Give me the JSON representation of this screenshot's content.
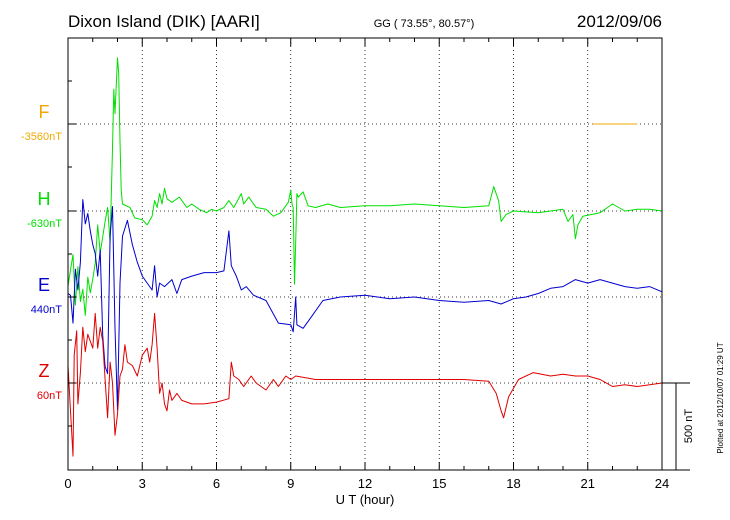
{
  "header": {
    "station": "Dixon Island (DIK)  [AARI]",
    "coords": "GG ( 73.55°,  80.57°)",
    "date": "2012/09/06"
  },
  "plotted_note": "Plotted at 2012/10/07 01:29 UT",
  "scale_label": "500 nT",
  "colors": {
    "F": "#f0a800",
    "H": "#00e000",
    "E": "#0000d0",
    "Z": "#e00000",
    "frame": "#000000",
    "grid": "#000000"
  },
  "chart_data": {
    "type": "line",
    "title": "Dixon Island (DIK)  [AARI]",
    "xlabel": "U T (hour)",
    "xlim": [
      0,
      24
    ],
    "xticks": [
      0,
      3,
      6,
      9,
      12,
      15,
      18,
      21,
      24
    ],
    "grid": true,
    "scale_bar_nT": 500,
    "series": [
      {
        "name": "F",
        "baseline_label": "-3560nT",
        "points": [
          [
            21.2,
            0
          ],
          [
            23.0,
            0
          ]
        ]
      },
      {
        "name": "H",
        "baseline_label": "-630nT",
        "points": [
          [
            0,
            -430
          ],
          [
            0.2,
            -250
          ],
          [
            0.3,
            -540
          ],
          [
            0.4,
            -320
          ],
          [
            0.5,
            -520
          ],
          [
            0.6,
            -450
          ],
          [
            0.7,
            -600
          ],
          [
            0.8,
            -380
          ],
          [
            0.9,
            -470
          ],
          [
            1.0,
            -390
          ],
          [
            1.1,
            -300
          ],
          [
            1.2,
            -80
          ],
          [
            1.3,
            -240
          ],
          [
            1.4,
            -150
          ],
          [
            1.5,
            -60
          ],
          [
            1.6,
            20
          ],
          [
            1.7,
            -180
          ],
          [
            1.8,
            360
          ],
          [
            1.85,
            700
          ],
          [
            1.9,
            560
          ],
          [
            2.0,
            880
          ],
          [
            2.05,
            790
          ],
          [
            2.1,
            400
          ],
          [
            2.15,
            120
          ],
          [
            2.2,
            40
          ],
          [
            2.5,
            20
          ],
          [
            2.7,
            -40
          ],
          [
            3.0,
            -50
          ],
          [
            3.2,
            -80
          ],
          [
            3.4,
            -30
          ],
          [
            3.5,
            60
          ],
          [
            3.6,
            20
          ],
          [
            3.7,
            100
          ],
          [
            3.8,
            40
          ],
          [
            3.9,
            130
          ],
          [
            4.0,
            70
          ],
          [
            4.2,
            50
          ],
          [
            4.5,
            80
          ],
          [
            4.8,
            20
          ],
          [
            5.0,
            40
          ],
          [
            5.3,
            10
          ],
          [
            5.6,
            -10
          ],
          [
            5.8,
            10
          ],
          [
            6.0,
            0
          ],
          [
            6.3,
            20
          ],
          [
            6.5,
            60
          ],
          [
            6.7,
            20
          ],
          [
            7.0,
            100
          ],
          [
            7.1,
            40
          ],
          [
            7.3,
            80
          ],
          [
            7.6,
            20
          ],
          [
            8.0,
            10
          ],
          [
            8.3,
            -30
          ],
          [
            8.6,
            -10
          ],
          [
            8.9,
            50
          ],
          [
            9.0,
            120
          ],
          [
            9.05,
            40
          ],
          [
            9.1,
            20
          ],
          [
            9.15,
            -420
          ],
          [
            9.2,
            -180
          ],
          [
            9.25,
            100
          ],
          [
            9.3,
            80
          ],
          [
            9.5,
            110
          ],
          [
            9.7,
            30
          ],
          [
            10.0,
            20
          ],
          [
            10.5,
            40
          ],
          [
            11.0,
            20
          ],
          [
            12.0,
            30
          ],
          [
            13.0,
            30
          ],
          [
            14.0,
            40
          ],
          [
            15.0,
            30
          ],
          [
            16.0,
            20
          ],
          [
            17.0,
            30
          ],
          [
            17.2,
            140
          ],
          [
            17.4,
            60
          ],
          [
            17.5,
            -60
          ],
          [
            17.7,
            -20
          ],
          [
            18.0,
            0
          ],
          [
            19.0,
            -10
          ],
          [
            20.0,
            10
          ],
          [
            20.2,
            -60
          ],
          [
            20.4,
            -20
          ],
          [
            20.5,
            -160
          ],
          [
            20.6,
            -80
          ],
          [
            20.8,
            -30
          ],
          [
            21.5,
            -10
          ],
          [
            22.0,
            40
          ],
          [
            22.5,
            0
          ],
          [
            23.0,
            10
          ],
          [
            23.5,
            10
          ],
          [
            24.0,
            0
          ]
        ]
      },
      {
        "name": "E",
        "baseline_label": "440nT",
        "points": [
          [
            0,
            20
          ],
          [
            0.1,
            10
          ],
          [
            0.2,
            -150
          ],
          [
            0.3,
            160
          ],
          [
            0.4,
            40
          ],
          [
            0.5,
            200
          ],
          [
            0.6,
            560
          ],
          [
            0.7,
            420
          ],
          [
            0.8,
            480
          ],
          [
            0.9,
            380
          ],
          [
            1.0,
            300
          ],
          [
            1.1,
            250
          ],
          [
            1.2,
            120
          ],
          [
            1.3,
            270
          ],
          [
            1.4,
            -220
          ],
          [
            1.5,
            -400
          ],
          [
            1.6,
            -440
          ],
          [
            1.7,
            350
          ],
          [
            1.8,
            520
          ],
          [
            1.9,
            -180
          ],
          [
            2.0,
            -650
          ],
          [
            2.1,
            80
          ],
          [
            2.2,
            350
          ],
          [
            2.4,
            440
          ],
          [
            2.6,
            300
          ],
          [
            2.8,
            200
          ],
          [
            3.0,
            120
          ],
          [
            3.2,
            80
          ],
          [
            3.4,
            40
          ],
          [
            3.5,
            180
          ],
          [
            3.6,
            0
          ],
          [
            3.7,
            80
          ],
          [
            3.9,
            60
          ],
          [
            4.2,
            100
          ],
          [
            4.4,
            20
          ],
          [
            4.6,
            100
          ],
          [
            5.0,
            120
          ],
          [
            5.5,
            140
          ],
          [
            6.0,
            140
          ],
          [
            6.3,
            150
          ],
          [
            6.5,
            380
          ],
          [
            6.6,
            180
          ],
          [
            6.8,
            120
          ],
          [
            7.0,
            40
          ],
          [
            7.2,
            60
          ],
          [
            7.5,
            10
          ],
          [
            8.0,
            -20
          ],
          [
            8.5,
            -150
          ],
          [
            9.0,
            -160
          ],
          [
            9.1,
            -200
          ],
          [
            9.2,
            0
          ],
          [
            9.25,
            -160
          ],
          [
            9.5,
            -180
          ],
          [
            9.8,
            -120
          ],
          [
            10.3,
            -20
          ],
          [
            11.0,
            0
          ],
          [
            12.0,
            10
          ],
          [
            13.0,
            -10
          ],
          [
            14.0,
            0
          ],
          [
            15.0,
            -20
          ],
          [
            16.0,
            -30
          ],
          [
            17.0,
            -20
          ],
          [
            17.5,
            -40
          ],
          [
            18.0,
            -10
          ],
          [
            18.5,
            0
          ],
          [
            19.0,
            20
          ],
          [
            19.5,
            50
          ],
          [
            20.0,
            60
          ],
          [
            20.5,
            100
          ],
          [
            21.0,
            80
          ],
          [
            21.5,
            100
          ],
          [
            22.0,
            80
          ],
          [
            22.5,
            60
          ],
          [
            23.0,
            50
          ],
          [
            23.5,
            60
          ],
          [
            24.0,
            30
          ]
        ]
      },
      {
        "name": "Z",
        "baseline_label": "60nT",
        "points": [
          [
            0,
            100
          ],
          [
            0.2,
            -420
          ],
          [
            0.25,
            160
          ],
          [
            0.35,
            300
          ],
          [
            0.4,
            -120
          ],
          [
            0.5,
            60
          ],
          [
            0.6,
            320
          ],
          [
            0.7,
            180
          ],
          [
            0.8,
            280
          ],
          [
            1.0,
            200
          ],
          [
            1.1,
            400
          ],
          [
            1.2,
            200
          ],
          [
            1.3,
            320
          ],
          [
            1.4,
            240
          ],
          [
            1.5,
            20
          ],
          [
            1.6,
            -200
          ],
          [
            1.7,
            120
          ],
          [
            1.8,
            0
          ],
          [
            1.9,
            -300
          ],
          [
            2.0,
            -180
          ],
          [
            2.1,
            40
          ],
          [
            2.2,
            80
          ],
          [
            2.3,
            220
          ],
          [
            2.4,
            120
          ],
          [
            2.6,
            100
          ],
          [
            2.8,
            40
          ],
          [
            3.0,
            160
          ],
          [
            3.2,
            200
          ],
          [
            3.3,
            120
          ],
          [
            3.4,
            220
          ],
          [
            3.5,
            400
          ],
          [
            3.6,
            200
          ],
          [
            3.7,
            -60
          ],
          [
            3.8,
            0
          ],
          [
            3.9,
            -120
          ],
          [
            4.0,
            -160
          ],
          [
            4.1,
            -40
          ],
          [
            4.2,
            -100
          ],
          [
            4.4,
            -60
          ],
          [
            4.6,
            -100
          ],
          [
            5.0,
            -120
          ],
          [
            5.5,
            -120
          ],
          [
            6.0,
            -110
          ],
          [
            6.5,
            -90
          ],
          [
            6.6,
            120
          ],
          [
            6.7,
            40
          ],
          [
            6.9,
            20
          ],
          [
            7.1,
            -20
          ],
          [
            7.4,
            40
          ],
          [
            7.6,
            0
          ],
          [
            8.0,
            -40
          ],
          [
            8.3,
            20
          ],
          [
            8.5,
            -20
          ],
          [
            8.8,
            40
          ],
          [
            9.0,
            20
          ],
          [
            9.2,
            40
          ],
          [
            10.0,
            20
          ],
          [
            11.0,
            20
          ],
          [
            12.0,
            20
          ],
          [
            13.0,
            20
          ],
          [
            14.0,
            20
          ],
          [
            15.0,
            20
          ],
          [
            16.0,
            20
          ],
          [
            17.0,
            10
          ],
          [
            17.3,
            -60
          ],
          [
            17.5,
            -160
          ],
          [
            17.6,
            -200
          ],
          [
            17.8,
            -80
          ],
          [
            18.2,
            20
          ],
          [
            18.8,
            60
          ],
          [
            19.5,
            40
          ],
          [
            20.0,
            50
          ],
          [
            20.5,
            40
          ],
          [
            21.0,
            40
          ],
          [
            21.5,
            20
          ],
          [
            22.0,
            -20
          ],
          [
            22.5,
            -10
          ],
          [
            23.0,
            -20
          ],
          [
            23.5,
            -10
          ],
          [
            24.0,
            0
          ]
        ]
      }
    ]
  }
}
